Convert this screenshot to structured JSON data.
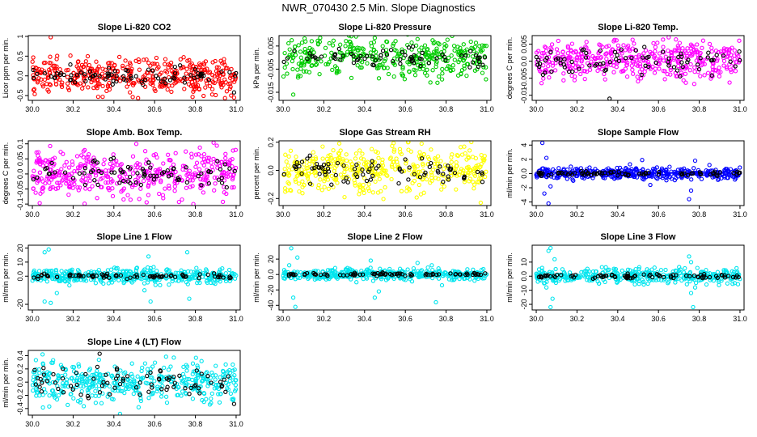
{
  "figure": {
    "title": "NWR_070430  2.5 Min. Slope Diagnostics"
  },
  "chart_data": [
    {
      "type": "scatter",
      "title": "Slope Li-820 CO2",
      "ylabel": "Licor ppm per min.",
      "xlim": [
        29.98,
        31.02
      ],
      "ylim": [
        -0.62,
        1.02
      ],
      "xticks": [
        30.0,
        30.2,
        30.4,
        30.6,
        30.8,
        31.0
      ],
      "yticks": [
        -0.5,
        0.0,
        0.5,
        1.0
      ],
      "series": [
        {
          "color": "#ff0000",
          "noise": 0.22,
          "n": 420,
          "outliers": [
            [
              30.09,
              0.98
            ],
            [
              30.99,
              -0.55
            ]
          ]
        },
        {
          "color": "#000000",
          "noise": 0.12,
          "n": 80,
          "outliers": [
            [
              30.99,
              -0.42
            ]
          ]
        }
      ]
    },
    {
      "type": "scatter",
      "title": "Slope Li-820 Pressure",
      "ylabel": "kPa per min.",
      "xlim": [
        29.98,
        31.02
      ],
      "ylim": [
        -0.0185,
        0.0095
      ],
      "xticks": [
        30.0,
        30.2,
        30.4,
        30.6,
        30.8,
        31.0
      ],
      "yticks": [
        -0.015,
        -0.005,
        0.005
      ],
      "series": [
        {
          "color": "#00cc00",
          "noise": 0.0045,
          "n": 380,
          "outliers": [
            [
              30.05,
              -0.016
            ],
            [
              30.45,
              0.0085
            ],
            [
              30.66,
              0.008
            ]
          ]
        },
        {
          "color": "#000000",
          "noise": 0.002,
          "n": 70,
          "outliers": []
        }
      ]
    },
    {
      "type": "scatter",
      "title": "Slope Li-820 Temp.",
      "ylabel": "degrees C per min.",
      "xlim": [
        29.98,
        31.02
      ],
      "ylim": [
        -0.0115,
        0.0075
      ],
      "xticks": [
        30.0,
        30.2,
        30.4,
        30.6,
        30.8,
        31.0
      ],
      "yticks": [
        -0.01,
        -0.005,
        0.0,
        0.005
      ],
      "series": [
        {
          "color": "#ff00ff",
          "noise": 0.0028,
          "n": 420,
          "outliers": [
            [
              30.65,
              0.007
            ]
          ]
        },
        {
          "color": "#000000",
          "noise": 0.002,
          "n": 80,
          "outliers": [
            [
              30.36,
              -0.011
            ]
          ]
        }
      ]
    },
    {
      "type": "scatter",
      "title": "Slope Amb. Box Temp.",
      "ylabel": "degrees C per min.",
      "xlim": [
        29.98,
        31.02
      ],
      "ylim": [
        -0.105,
        0.11
      ],
      "xticks": [
        30.0,
        30.2,
        30.4,
        30.6,
        30.8,
        31.0
      ],
      "yticks": [
        -0.1,
        -0.05,
        0.0,
        0.05,
        0.1
      ],
      "series": [
        {
          "color": "#ff00ff",
          "noise": 0.04,
          "n": 420,
          "outliers": [
            [
              30.79,
              -0.1
            ]
          ]
        },
        {
          "color": "#000000",
          "noise": 0.025,
          "n": 80,
          "outliers": []
        }
      ]
    },
    {
      "type": "scatter",
      "title": "Slope Gas Stream RH",
      "ylabel": "percent per min.",
      "xlim": [
        29.98,
        31.02
      ],
      "ylim": [
        -0.25,
        0.21
      ],
      "xticks": [
        30.0,
        30.2,
        30.4,
        30.6,
        30.8,
        31.0
      ],
      "yticks": [
        -0.2,
        0.0,
        0.2
      ],
      "series": [
        {
          "color": "#ffff00",
          "noise": 0.08,
          "n": 420,
          "outliers": [
            [
              30.97,
              -0.23
            ],
            [
              30.68,
              0.19
            ]
          ]
        },
        {
          "color": "#000000",
          "noise": 0.05,
          "n": 80,
          "outliers": []
        }
      ]
    },
    {
      "type": "scatter",
      "title": "Slope Sample Flow",
      "ylabel": "ml/min per min.",
      "xlim": [
        29.98,
        31.02
      ],
      "ylim": [
        -4.5,
        4.6
      ],
      "xticks": [
        30.0,
        30.2,
        30.4,
        30.6,
        30.8,
        31.0
      ],
      "yticks": [
        -4,
        -2,
        0,
        2,
        4
      ],
      "series": [
        {
          "color": "#0000ff",
          "noise": 0.4,
          "n": 420,
          "outliers": [
            [
              30.03,
              4.3
            ],
            [
              30.04,
              -2.8
            ],
            [
              30.06,
              -4.2
            ],
            [
              30.05,
              2.2
            ],
            [
              30.07,
              -1.8
            ],
            [
              30.46,
              1.3
            ],
            [
              30.52,
              1.9
            ],
            [
              30.56,
              -1.6
            ],
            [
              30.75,
              -3.6
            ],
            [
              30.76,
              -2.4
            ],
            [
              30.78,
              1.8
            ],
            [
              30.85,
              1.2
            ]
          ]
        },
        {
          "color": "#000000",
          "noise": 0.15,
          "n": 80,
          "outliers": []
        }
      ]
    },
    {
      "type": "scatter",
      "title": "Slope Line 1 Flow",
      "ylabel": "ml/min per min.",
      "xlim": [
        29.98,
        31.02
      ],
      "ylim": [
        -24,
        22
      ],
      "xticks": [
        30.0,
        30.2,
        30.4,
        30.6,
        30.8,
        31.0
      ],
      "yticks": [
        -20,
        0,
        10,
        20
      ],
      "series": [
        {
          "color": "#00e5ee",
          "noise": 2.6,
          "n": 420,
          "outliers": [
            [
              30.06,
              17
            ],
            [
              30.08,
              19
            ],
            [
              30.06,
              -18
            ],
            [
              30.09,
              -19
            ],
            [
              30.57,
              14
            ],
            [
              30.58,
              -18
            ],
            [
              30.55,
              -10
            ],
            [
              30.76,
              17
            ],
            [
              30.77,
              -16
            ],
            [
              30.12,
              -12
            ]
          ]
        },
        {
          "color": "#000000",
          "noise": 0.8,
          "n": 80,
          "outliers": []
        }
      ]
    },
    {
      "type": "scatter",
      "title": "Slope Line 2 Flow",
      "ylabel": "ml/min per min.",
      "xlim": [
        29.98,
        31.02
      ],
      "ylim": [
        -46,
        38
      ],
      "xticks": [
        30.0,
        30.2,
        30.4,
        30.6,
        30.8,
        31.0
      ],
      "yticks": [
        -40,
        -20,
        0,
        20
      ],
      "series": [
        {
          "color": "#00e5ee",
          "noise": 3.5,
          "n": 420,
          "outliers": [
            [
              30.04,
              34
            ],
            [
              30.05,
              -30
            ],
            [
              30.06,
              -42
            ],
            [
              30.07,
              22
            ],
            [
              30.03,
              12
            ],
            [
              30.43,
              18
            ],
            [
              30.45,
              -30
            ],
            [
              30.47,
              -22
            ],
            [
              30.36,
              -10
            ],
            [
              30.66,
              15
            ],
            [
              30.73,
              12
            ],
            [
              30.75,
              -36
            ],
            [
              30.78,
              -14
            ]
          ]
        },
        {
          "color": "#000000",
          "noise": 1.2,
          "n": 80,
          "outliers": []
        }
      ]
    },
    {
      "type": "scatter",
      "title": "Slope Line 3 Flow",
      "ylabel": "ml/min per min.",
      "xlim": [
        29.98,
        31.02
      ],
      "ylim": [
        -24,
        22
      ],
      "xticks": [
        30.0,
        30.2,
        30.4,
        30.6,
        30.8,
        31.0
      ],
      "yticks": [
        -20,
        -10,
        0,
        10
      ],
      "series": [
        {
          "color": "#00e5ee",
          "noise": 2.5,
          "n": 420,
          "outliers": [
            [
              30.06,
              18
            ],
            [
              30.07,
              20
            ],
            [
              30.08,
              -16
            ],
            [
              30.07,
              -22
            ],
            [
              30.05,
              -8
            ],
            [
              30.09,
              12
            ],
            [
              30.75,
              14
            ],
            [
              30.76,
              10
            ],
            [
              30.77,
              -22
            ],
            [
              30.76,
              -12
            ],
            [
              30.78,
              -8
            ]
          ]
        },
        {
          "color": "#000000",
          "noise": 0.8,
          "n": 80,
          "outliers": []
        }
      ]
    },
    {
      "type": "scatter",
      "title": "Slope Line 4 (LT) Flow",
      "ylabel": "ml/min per min.",
      "xlim": [
        29.98,
        31.02
      ],
      "ylim": [
        -0.5,
        0.48
      ],
      "xticks": [
        30.0,
        30.2,
        30.4,
        30.6,
        30.8,
        31.0
      ],
      "yticks": [
        -0.4,
        -0.2,
        0.0,
        0.2,
        0.4
      ],
      "series": [
        {
          "color": "#00e5ee",
          "noise": 0.15,
          "n": 420,
          "outliers": [
            [
              30.05,
              0.42
            ],
            [
              30.43,
              -0.48
            ]
          ]
        },
        {
          "color": "#000000",
          "noise": 0.12,
          "n": 80,
          "outliers": [
            [
              30.33,
              0.43
            ],
            [
              30.99,
              -0.33
            ]
          ]
        }
      ]
    }
  ]
}
